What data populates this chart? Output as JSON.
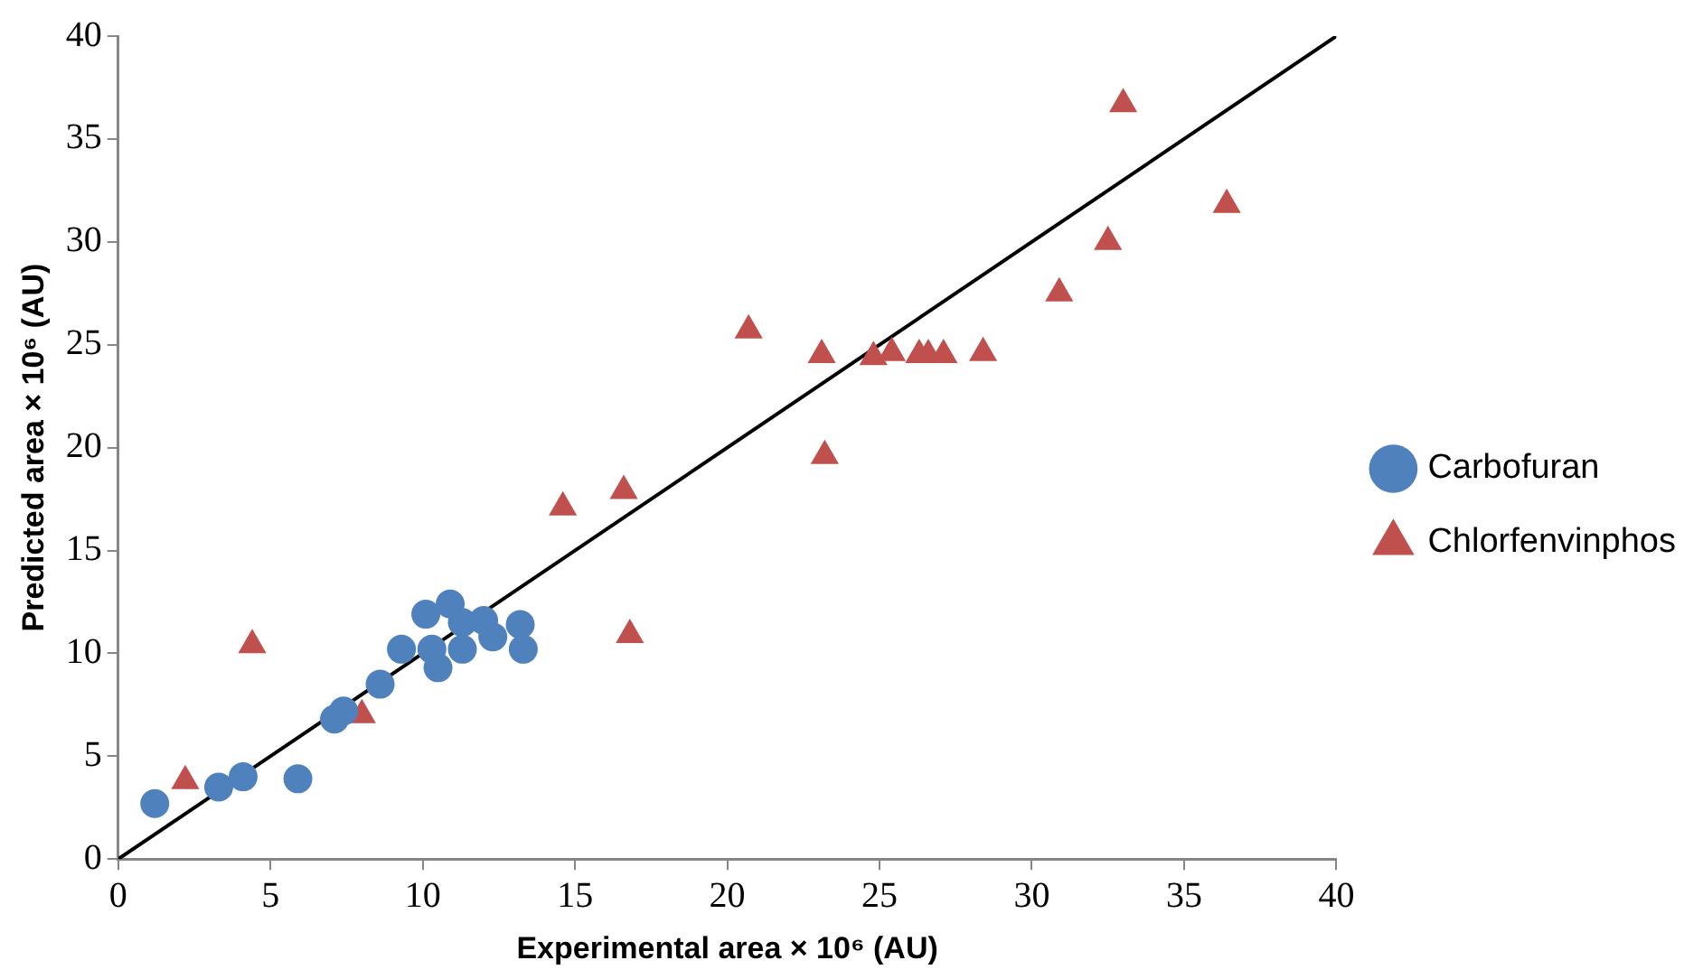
{
  "chart_data": {
    "type": "scatter",
    "xlabel": "Experimental area × 10⁶ (AU)",
    "ylabel": "Predicted area × 10⁶ (AU)",
    "xlim": [
      0,
      40
    ],
    "xticks": [
      0,
      5,
      10,
      15,
      20,
      25,
      30,
      35,
      40
    ],
    "ylim": [
      0,
      40
    ],
    "yticks": [
      0,
      5,
      10,
      15,
      20,
      25,
      30,
      35,
      40
    ],
    "grid": false,
    "legend": "right",
    "series": [
      {
        "name": "Carbofuran",
        "color": "#4f81bd",
        "marker": "circle",
        "x": [
          1.2,
          3.3,
          4.1,
          5.9,
          7.1,
          7.4,
          8.6,
          9.3,
          10.1,
          10.3,
          10.5,
          10.9,
          11.3,
          11.3,
          12.0,
          12.3,
          13.2,
          13.3
        ],
        "values": [
          2.7,
          3.5,
          4.0,
          3.9,
          6.8,
          7.2,
          8.5,
          10.2,
          11.9,
          10.2,
          9.3,
          12.4,
          11.5,
          10.2,
          11.6,
          10.8,
          11.4,
          10.2
        ]
      },
      {
        "name": "Chlorfenvinphos",
        "color": "#c0504d",
        "marker": "triangle",
        "x": [
          2.2,
          4.4,
          8.0,
          14.6,
          16.6,
          16.8,
          20.7,
          23.1,
          23.2,
          24.8,
          25.4,
          26.3,
          26.6,
          27.1,
          28.4,
          30.9,
          32.5,
          33.0,
          36.4
        ],
        "values": [
          3.8,
          10.4,
          7.0,
          17.1,
          17.9,
          10.9,
          25.7,
          24.5,
          19.6,
          24.4,
          24.6,
          24.5,
          24.5,
          24.5,
          24.6,
          27.5,
          30.0,
          36.7,
          31.8
        ]
      },
      {
        "type": "line",
        "color": "#000000",
        "marker": "none",
        "x": [
          0,
          40
        ],
        "values": [
          0,
          40
        ]
      }
    ]
  }
}
